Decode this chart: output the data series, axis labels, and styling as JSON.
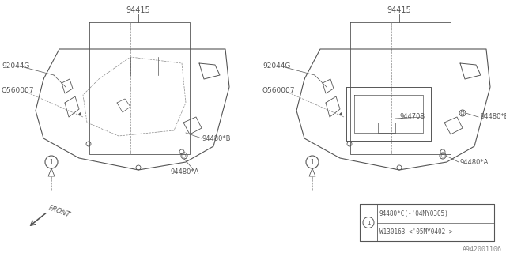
{
  "bg_color": "#ffffff",
  "lc": "#555555",
  "dlc": "#888888",
  "title": "A942001106",
  "legend_row1": "94480*C(-'04MY0305)",
  "legend_row2": "W130163 <'05MY0402->",
  "fig_width": 6.4,
  "fig_height": 3.2,
  "dpi": 100
}
